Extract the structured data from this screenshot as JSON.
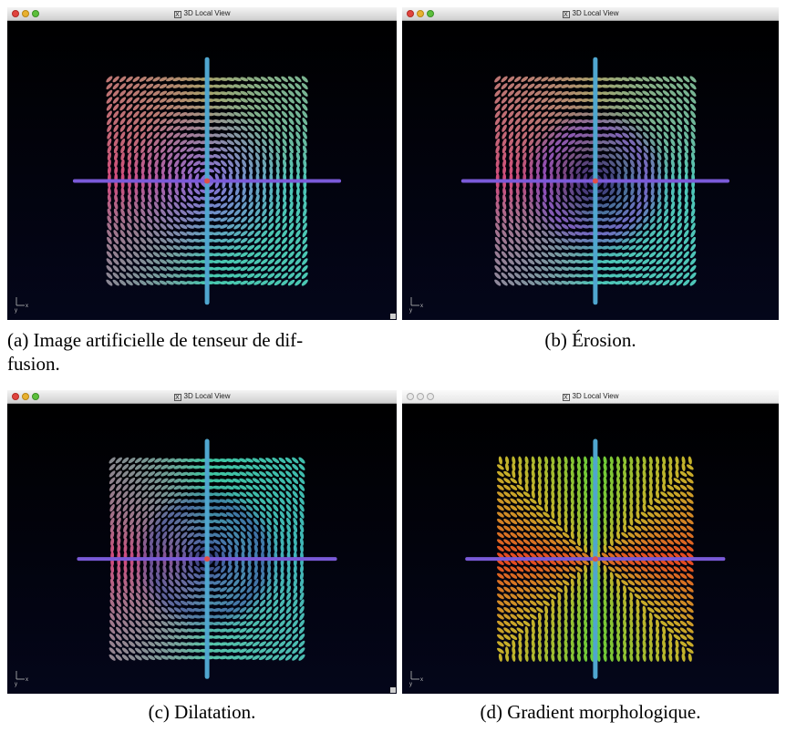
{
  "panels": [
    {
      "id": "a",
      "window_title": "3D Local View",
      "window_active": true,
      "caption_lines": [
        "(a) Image artificielle de tenseur de dif-",
        "fusion."
      ],
      "color_scheme": "diffusion",
      "colors": {
        "left": "#d2487c",
        "top": "#a7a16a",
        "center": "#8a6ad8",
        "right": "#4ec6b8",
        "bottom": "#48c8ae"
      }
    },
    {
      "id": "b",
      "window_title": "3D Local View",
      "window_active": true,
      "caption_lines": [
        "(b) Érosion."
      ],
      "color_scheme": "erosion",
      "colors": {
        "left": "#d2487c",
        "top": "#a7a16a",
        "center": "#4a3a8a",
        "ring": "#8a4fd6",
        "right": "#4ec6b8"
      }
    },
    {
      "id": "c",
      "window_title": "3D Local View",
      "window_active": true,
      "caption_lines": [
        "(c) Dilatation."
      ],
      "color_scheme": "dilatation",
      "colors": {
        "left": "#d2487c",
        "top": "#3fc7a0",
        "center": "#4a5aa8",
        "right": "#3fb3b9",
        "bottom": "#58c4a8"
      }
    },
    {
      "id": "d",
      "window_title": "3D Local View",
      "window_active": false,
      "caption_lines": [
        "(d) Gradient morphologique."
      ],
      "color_scheme": "gradient",
      "colors": {
        "horizontal": "#e8431e",
        "vertical": "#5fd03a",
        "mid": "#c6b12a"
      }
    }
  ],
  "axis_labels": {
    "x": "x",
    "y": "y"
  },
  "background_color": "#04061a",
  "rods": {
    "vertical": "#4fa6cf",
    "horizontal": "#7a5ad8"
  }
}
